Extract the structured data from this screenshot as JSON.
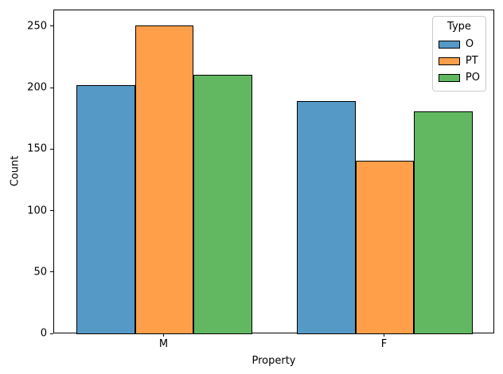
{
  "chart_data": {
    "type": "bar",
    "title": "",
    "xlabel": "Property",
    "ylabel": "Count",
    "categories": [
      "M",
      "F"
    ],
    "series": [
      {
        "name": "O",
        "color": "#5599c7",
        "values": [
          203,
          190
        ]
      },
      {
        "name": "PT",
        "color": "#ff9f4a",
        "values": [
          251,
          141
        ]
      },
      {
        "name": "PO",
        "color": "#61b861",
        "values": [
          211,
          181
        ]
      }
    ],
    "bar_edge_color": "#000000",
    "legend": {
      "title": "Type",
      "position": "upper right",
      "labels": [
        "O",
        "PT",
        "PO"
      ]
    },
    "x_tick_labels": [
      "M",
      "F"
    ],
    "y_ticks": [
      0,
      50,
      100,
      150,
      200,
      250
    ],
    "xlim": [
      -0.5,
      1.5
    ],
    "ylim": [
      0,
      263.55
    ],
    "group_width": 0.8,
    "grid": false,
    "background": "#ffffff",
    "spine_color": "#000000"
  }
}
